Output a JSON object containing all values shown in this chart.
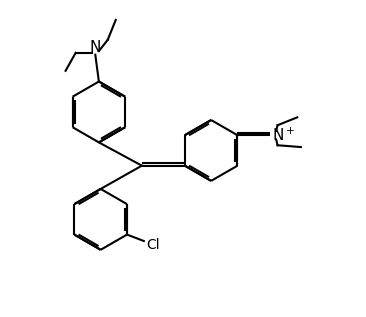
{
  "bg_color": "#ffffff",
  "line_color": "#000000",
  "line_width": 1.5,
  "font_size": 10,
  "fig_width": 3.66,
  "fig_height": 3.17,
  "dpi": 100,
  "xlim": [
    0,
    10
  ],
  "ylim": [
    0,
    8.7
  ]
}
